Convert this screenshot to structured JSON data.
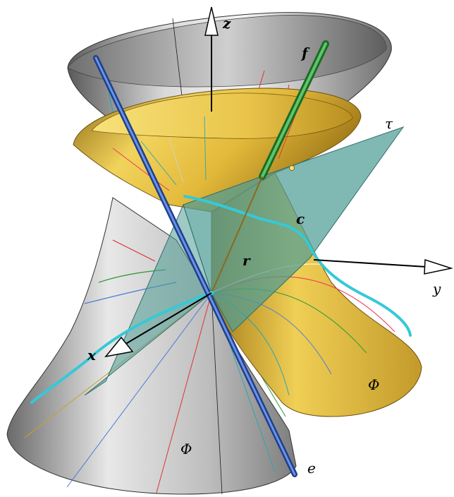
{
  "labels": {
    "z": "z",
    "f": "f",
    "tau": "τ",
    "c": "c",
    "r": "r",
    "y": "y",
    "x": "x",
    "phi_right": "Φ",
    "phi_bottom": "Φ",
    "e": "e"
  },
  "colors": {
    "gray_surface": "#9a9a9a",
    "gold_surface": "#d9b23a",
    "plane": "#4f9c96",
    "curve_c": "#35c9d8",
    "axis_e": "#2f5fc0",
    "line_f": "#2f9a3a"
  }
}
